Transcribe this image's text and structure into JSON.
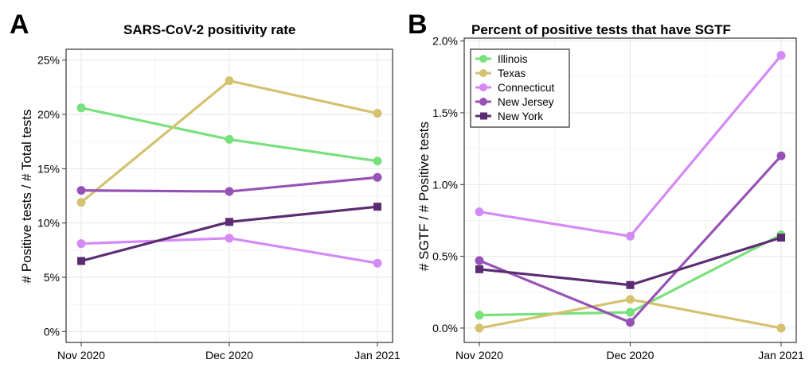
{
  "panels": [
    {
      "letter": "A",
      "title": "SARS-CoV-2 positivity rate",
      "ylabel": "# Positive tests / # Total tests"
    },
    {
      "letter": "B",
      "title": "Percent of positive tests that have SGTF",
      "ylabel": "# SGTF / # Positive tests"
    }
  ],
  "colors": {
    "Illinois": "#78e07c",
    "Texas": "#d4c271",
    "Connecticut": "#d48af5",
    "New Jersey": "#9752b5",
    "New York": "#5c2c73"
  },
  "chart_data": [
    {
      "type": "line",
      "title": "SARS-CoV-2 positivity rate",
      "xlabel": "",
      "ylabel": "# Positive tests / # Total tests",
      "categories": [
        "Nov 2020",
        "Dec 2020",
        "Jan 2021"
      ],
      "ylim": [
        -0.01,
        0.26
      ],
      "yticks": [
        0,
        0.05,
        0.1,
        0.15,
        0.2,
        0.25
      ],
      "ytick_labels": [
        "0%",
        "5%",
        "10%",
        "15%",
        "20%",
        "25%"
      ],
      "grid": true,
      "legend": "none",
      "series": [
        {
          "name": "Illinois",
          "marker": "circle",
          "values": [
            0.206,
            0.177,
            0.157
          ]
        },
        {
          "name": "Texas",
          "marker": "circle",
          "values": [
            0.119,
            0.231,
            0.201
          ]
        },
        {
          "name": "Connecticut",
          "marker": "circle",
          "values": [
            0.081,
            0.086,
            0.063
          ]
        },
        {
          "name": "New Jersey",
          "marker": "circle",
          "values": [
            0.13,
            0.129,
            0.142
          ]
        },
        {
          "name": "New York",
          "marker": "square",
          "values": [
            0.065,
            0.101,
            0.115
          ]
        }
      ]
    },
    {
      "type": "line",
      "title": "Percent of positive tests that have SGTF",
      "xlabel": "",
      "ylabel": "# SGTF / # Positive tests",
      "categories": [
        "Nov 2020",
        "Dec 2020",
        "Jan 2021"
      ],
      "ylim": [
        -0.001,
        0.0202
      ],
      "yticks": [
        0,
        0.005,
        0.01,
        0.015,
        0.02
      ],
      "ytick_labels": [
        "0.0%",
        "0.5%",
        "1.0%",
        "1.5%",
        "2.0%"
      ],
      "grid": true,
      "legend": "top-left",
      "series": [
        {
          "name": "Illinois",
          "marker": "circle",
          "values": [
            0.0009,
            0.0011,
            0.0065
          ]
        },
        {
          "name": "Texas",
          "marker": "circle",
          "values": [
            0.0,
            0.002,
            0.0
          ]
        },
        {
          "name": "Connecticut",
          "marker": "circle",
          "values": [
            0.0081,
            0.0064,
            0.019
          ]
        },
        {
          "name": "New Jersey",
          "marker": "circle",
          "values": [
            0.0047,
            0.0004,
            0.012
          ]
        },
        {
          "name": "New York",
          "marker": "square",
          "values": [
            0.0041,
            0.003,
            0.0063
          ]
        }
      ]
    }
  ]
}
